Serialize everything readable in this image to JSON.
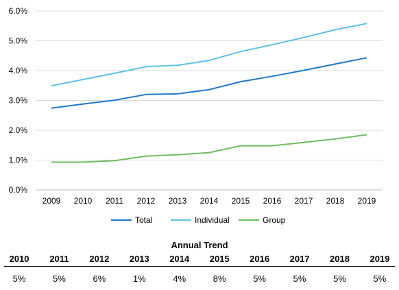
{
  "chart_data": {
    "type": "line",
    "categories": [
      "2009",
      "2010",
      "2011",
      "2012",
      "2013",
      "2014",
      "2015",
      "2016",
      "2017",
      "2018",
      "2019"
    ],
    "series": [
      {
        "name": "Total",
        "values": [
          2.74,
          2.88,
          3.01,
          3.2,
          3.22,
          3.36,
          3.63,
          3.81,
          4.01,
          4.22,
          4.43
        ],
        "color": "#1f78c8"
      },
      {
        "name": "Individual",
        "values": [
          3.49,
          3.7,
          3.91,
          4.13,
          4.18,
          4.34,
          4.64,
          4.87,
          5.11,
          5.37,
          5.58
        ],
        "color": "#5bc0e6"
      },
      {
        "name": "Group",
        "values": [
          0.93,
          0.93,
          0.98,
          1.13,
          1.18,
          1.25,
          1.48,
          1.48,
          1.59,
          1.71,
          1.85
        ],
        "color": "#70bd5f"
      }
    ],
    "ylim": [
      0,
      6
    ],
    "yticks": [
      "0.0%",
      "1.0%",
      "2.0%",
      "3.0%",
      "4.0%",
      "5.0%",
      "6.0%"
    ],
    "grid": true,
    "legend": "bottom"
  },
  "trend": {
    "title": "Annual Trend",
    "years": [
      "2010",
      "2011",
      "2012",
      "2013",
      "2014",
      "2015",
      "2016",
      "2017",
      "2018",
      "2019"
    ],
    "values": [
      "5%",
      "5%",
      "6%",
      "1%",
      "4%",
      "8%",
      "5%",
      "5%",
      "5%",
      "5%"
    ]
  }
}
